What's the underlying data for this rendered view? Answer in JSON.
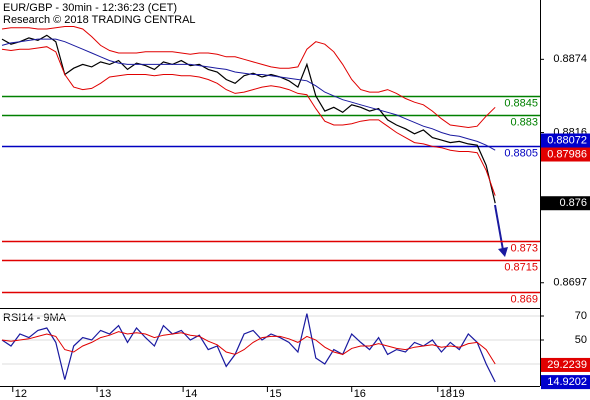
{
  "chart_data": [
    {
      "type": "line",
      "title": "EUR/GBP - 30min - 12:36:23 (CET)",
      "subtitle": "Research © 2018 TRADING CENTRAL",
      "x": [
        0,
        5,
        10,
        15,
        20,
        25,
        30,
        35,
        40,
        45,
        50,
        55,
        60,
        65,
        70,
        75,
        80,
        85,
        90,
        95,
        100,
        105,
        110,
        115,
        120,
        125,
        130,
        135,
        140,
        145,
        150,
        155,
        160,
        165,
        170,
        175,
        180,
        185,
        190,
        195,
        200,
        205,
        210,
        215,
        220,
        225,
        230,
        235,
        240,
        245,
        250,
        255,
        260,
        265,
        270,
        275
      ],
      "xlim": [
        0,
        300
      ],
      "xticks": [
        {
          "value": 6,
          "label": "12"
        },
        {
          "value": 53,
          "label": "13"
        },
        {
          "value": 101,
          "label": "14"
        },
        {
          "value": 148,
          "label": "15"
        },
        {
          "value": 195,
          "label": "16"
        },
        {
          "value": 243,
          "label": "18"
        },
        {
          "value": 250,
          "label": "19"
        }
      ],
      "ylim": [
        0.8677,
        0.8921
      ],
      "yticks": [
        0.8874,
        0.8816,
        0.876,
        0.8697
      ],
      "series": [
        {
          "color": "#000000",
          "values": [
            0.889,
            0.8886,
            0.8888,
            0.8891,
            0.8889,
            0.8893,
            0.8888,
            0.8862,
            0.8867,
            0.887,
            0.8868,
            0.8872,
            0.887,
            0.8873,
            0.8866,
            0.8871,
            0.8869,
            0.8866,
            0.8872,
            0.887,
            0.8873,
            0.8869,
            0.887,
            0.8866,
            0.8864,
            0.8858,
            0.8855,
            0.8861,
            0.8863,
            0.886,
            0.8862,
            0.886,
            0.8857,
            0.8852,
            0.887,
            0.8845,
            0.8833,
            0.8836,
            0.8832,
            0.8838,
            0.8836,
            0.8833,
            0.8835,
            0.8826,
            0.8822,
            0.8819,
            0.8815,
            0.8818,
            0.8812,
            0.881,
            0.8808,
            0.8809,
            0.8807,
            0.8806,
            0.879,
            0.876
          ]
        },
        {
          "color": "#e00000",
          "values": [
            0.8898,
            0.8899,
            0.8899,
            0.8899,
            0.8898,
            0.8898,
            0.8899,
            0.89,
            0.89,
            0.8898,
            0.8892,
            0.8885,
            0.8881,
            0.8879,
            0.8879,
            0.8879,
            0.888,
            0.888,
            0.888,
            0.888,
            0.8879,
            0.8878,
            0.8879,
            0.8879,
            0.8878,
            0.8876,
            0.8876,
            0.8874,
            0.8872,
            0.887,
            0.8868,
            0.8867,
            0.8867,
            0.8868,
            0.8882,
            0.8888,
            0.8886,
            0.888,
            0.887,
            0.8858,
            0.885,
            0.8848,
            0.8848,
            0.885,
            0.8847,
            0.8843,
            0.884,
            0.8838,
            0.8833,
            0.8827,
            0.8822,
            0.8821,
            0.882,
            0.8821,
            0.8829,
            0.8836
          ]
        },
        {
          "color": "#e00000",
          "values": [
            0.8882,
            0.8881,
            0.8882,
            0.8882,
            0.8883,
            0.8884,
            0.888,
            0.8862,
            0.8852,
            0.885,
            0.8851,
            0.8855,
            0.886,
            0.8861,
            0.8862,
            0.8862,
            0.8862,
            0.8861,
            0.8862,
            0.8862,
            0.8861,
            0.8861,
            0.886,
            0.8858,
            0.8855,
            0.885,
            0.8847,
            0.8848,
            0.885,
            0.8852,
            0.8853,
            0.8852,
            0.885,
            0.8847,
            0.8846,
            0.8835,
            0.8825,
            0.8822,
            0.8822,
            0.8823,
            0.8825,
            0.8826,
            0.8826,
            0.8821,
            0.8816,
            0.8812,
            0.8808,
            0.8807,
            0.8805,
            0.8804,
            0.8802,
            0.8801,
            0.8801,
            0.88,
            0.8786,
            0.8766
          ]
        },
        {
          "color": "#1a1aa0",
          "values": [
            0.8885,
            0.8887,
            0.8888,
            0.8889,
            0.889,
            0.889,
            0.889,
            0.8888,
            0.8885,
            0.8882,
            0.8879,
            0.8876,
            0.8873,
            0.8871,
            0.887,
            0.887,
            0.887,
            0.887,
            0.887,
            0.887,
            0.887,
            0.887,
            0.8869,
            0.8868,
            0.8867,
            0.8866,
            0.8864,
            0.8863,
            0.8862,
            0.8862,
            0.8861,
            0.886,
            0.8859,
            0.8858,
            0.8857,
            0.8853,
            0.8848,
            0.8845,
            0.8842,
            0.884,
            0.8838,
            0.8836,
            0.8834,
            0.8832,
            0.883,
            0.8827,
            0.8824,
            0.8821,
            0.8819,
            0.8816,
            0.8814,
            0.8813,
            0.8811,
            0.8809,
            0.8806,
            0.8802
          ]
        }
      ],
      "levels": [
        {
          "value": 0.8845,
          "color": "#008000"
        },
        {
          "value": 0.883,
          "color": "#008000"
        },
        {
          "value": 0.8805,
          "color": "#0000c0"
        },
        {
          "value": 0.873,
          "color": "#e00000"
        },
        {
          "value": 0.8715,
          "color": "#e00000"
        },
        {
          "value": 0.869,
          "color": "#e00000"
        }
      ],
      "markers": [
        {
          "value": 0.88072,
          "color": "#0000cc"
        },
        {
          "value": 0.87986,
          "color": "#e00000"
        },
        {
          "value": 0.876,
          "color": "#000000"
        }
      ]
    },
    {
      "type": "line",
      "title": "RSI14 - 9MA",
      "x": [
        0,
        5,
        10,
        15,
        20,
        25,
        30,
        35,
        40,
        45,
        50,
        55,
        60,
        65,
        70,
        75,
        80,
        85,
        90,
        95,
        100,
        105,
        110,
        115,
        120,
        125,
        130,
        135,
        140,
        145,
        150,
        155,
        160,
        165,
        170,
        175,
        180,
        185,
        190,
        195,
        200,
        205,
        210,
        215,
        220,
        225,
        230,
        235,
        240,
        245,
        250,
        255,
        260,
        265,
        270,
        275
      ],
      "xlim": [
        0,
        300
      ],
      "ylim": [
        12.5,
        75
      ],
      "yticks": [
        70,
        50,
        30
      ],
      "series": [
        {
          "color": "#1a1aa0",
          "values": [
            50,
            45,
            55,
            52,
            58,
            60,
            48,
            17,
            45,
            52,
            50,
            58,
            55,
            62,
            48,
            60,
            52,
            45,
            62,
            55,
            58,
            50,
            54,
            42,
            45,
            28,
            38,
            55,
            58,
            50,
            55,
            52,
            48,
            40,
            72,
            35,
            30,
            42,
            38,
            55,
            48,
            42,
            52,
            38,
            42,
            40,
            48,
            45,
            50,
            40,
            48,
            42,
            55,
            48,
            30,
            15
          ]
        },
        {
          "color": "#e00000",
          "values": [
            50,
            49,
            50,
            51,
            53,
            55,
            53,
            42,
            40,
            45,
            48,
            52,
            54,
            57,
            55,
            56,
            55,
            52,
            54,
            55,
            56,
            54,
            53,
            49,
            46,
            40,
            38,
            42,
            48,
            52,
            53,
            53,
            51,
            48,
            53,
            50,
            44,
            40,
            38,
            43,
            45,
            45,
            47,
            45,
            43,
            42,
            44,
            45,
            46,
            44,
            45,
            44,
            47,
            48,
            42,
            30
          ]
        }
      ],
      "markers": [
        {
          "value": 29.2239,
          "color": "#e00000"
        },
        {
          "value": 14.9202,
          "color": "#0000cc"
        }
      ]
    }
  ]
}
